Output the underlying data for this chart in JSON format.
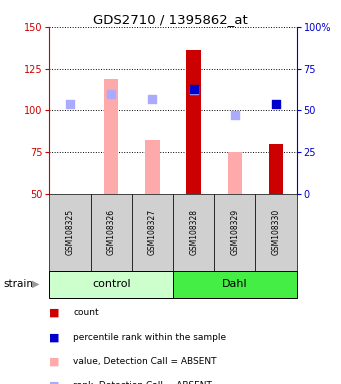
{
  "title": "GDS2710 / 1395862_at",
  "samples": [
    "GSM108325",
    "GSM108326",
    "GSM108327",
    "GSM108328",
    "GSM108329",
    "GSM108330"
  ],
  "groups": [
    {
      "name": "control",
      "color_light": "#ccffcc",
      "color_dark": "#66ee66"
    },
    {
      "name": "Dahl",
      "color_light": "#ccffcc",
      "color_dark": "#33ee33"
    }
  ],
  "group_colors": [
    "#ccffcc",
    "#44ee44"
  ],
  "ylim_left": [
    50,
    150
  ],
  "ylim_right": [
    0,
    100
  ],
  "yticks_left": [
    50,
    75,
    100,
    125,
    150
  ],
  "yticks_right": [
    0,
    25,
    50,
    75,
    100
  ],
  "ytick_labels_right": [
    "0",
    "25",
    "50",
    "75",
    "100%"
  ],
  "bars_value": [
    null,
    119,
    82,
    136,
    75,
    80
  ],
  "bars_color": [
    null,
    "#ffaaaa",
    "#ffaaaa",
    "#cc0000",
    "#ffaaaa",
    "#cc0000"
  ],
  "dots_rank_value": [
    104,
    110,
    107,
    112,
    97,
    null
  ],
  "dots_percentile_value": [
    null,
    null,
    null,
    113,
    null,
    104
  ],
  "bar_width": 0.35,
  "dot_size": 35,
  "rank_color": "#aaaaff",
  "percentile_color": "#0000cc",
  "background_color": "#ffffff",
  "left_axis_color": "#cc0000",
  "right_axis_color": "#0000cc",
  "grid_linestyle": "dotted",
  "legend_items": [
    {
      "color": "#cc0000",
      "label": "count"
    },
    {
      "color": "#0000cc",
      "label": "percentile rank within the sample"
    },
    {
      "color": "#ffaaaa",
      "label": "value, Detection Call = ABSENT"
    },
    {
      "color": "#aaaaff",
      "label": "rank, Detection Call = ABSENT"
    }
  ]
}
